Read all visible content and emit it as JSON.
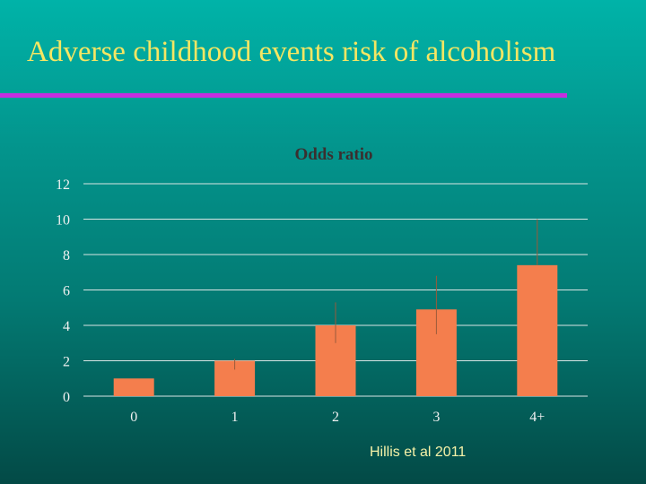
{
  "slide": {
    "title": "Adverse childhood events risk of alcoholism",
    "citation": "Hillis  et al 2011"
  },
  "colors": {
    "title_text": "#f5e663",
    "title_rule": "#c52ee0",
    "bar_fill": "#f47e4d",
    "gridline": "#d9e5e4",
    "error_bar": "#9a5a3a"
  },
  "chart_data": {
    "type": "bar",
    "title": "Odds ratio",
    "categories": [
      "0",
      "1",
      "2",
      "3",
      "4+"
    ],
    "values": [
      1.0,
      2.0,
      4.0,
      4.9,
      7.4
    ],
    "error_low": [
      1.0,
      1.5,
      3.0,
      3.5,
      7.4
    ],
    "error_high": [
      1.0,
      2.1,
      5.3,
      6.8,
      10.0
    ],
    "y_ticks": [
      "0",
      "2",
      "4",
      "6",
      "8",
      "10",
      "12"
    ],
    "ylim": [
      0,
      12
    ],
    "grid": true,
    "legend": "none",
    "xlabel": "",
    "ylabel": ""
  }
}
